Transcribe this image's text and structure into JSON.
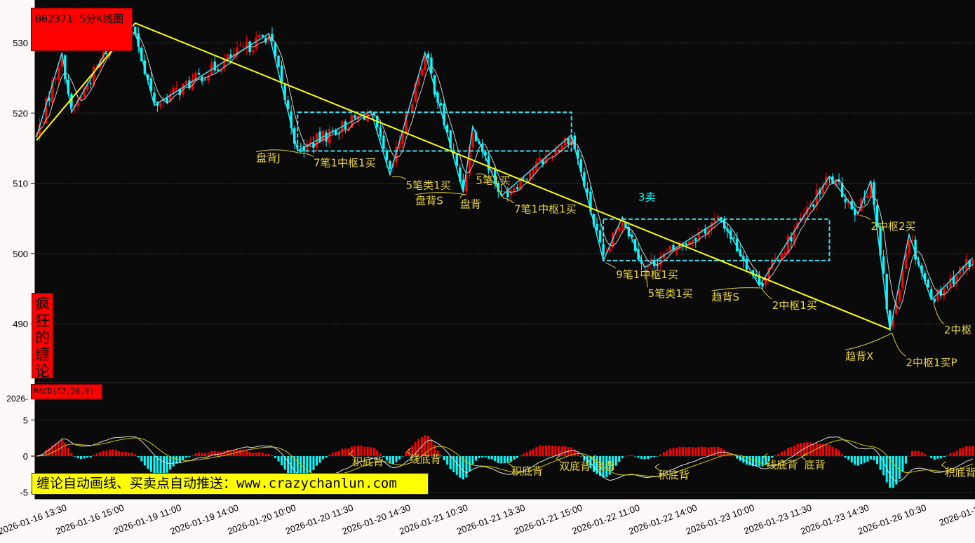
{
  "title": "002371 5分K线图",
  "side_label": "疯狂的缠论",
  "macd_label": "MACD(12,26,9)",
  "banner": "缠论自动画线、买卖点自动推送：www.crazychanlun.com",
  "colors": {
    "background": "#0a0a0a",
    "up": "#ff0000",
    "down": "#00ffff",
    "bi": "#40e0f0",
    "segment": "#ffff00",
    "annotation": "#e6d23c",
    "ma": "#cccccc",
    "dea": "#d4c400",
    "dif": "#dddddd"
  },
  "chart_data": [
    {
      "type": "candlestick",
      "title": "002371 5分K线图",
      "ylim": [
        485,
        536
      ],
      "yticks": [
        "530",
        "520",
        "510",
        "500",
        "490"
      ],
      "ytick_values": [
        530,
        520,
        510,
        500,
        490
      ],
      "grid": true,
      "xticks": [
        "2026-01-16 13:30",
        "2026-01-16 15:00",
        "2026-01-19 11:00",
        "2026-01-19 14:00",
        "2026-01-20 10:00",
        "2026-01-20 11:30",
        "2026-01-20 14:30",
        "2026-01-21 10:30",
        "2026-01-21 13:30",
        "2026-01-21 15:00",
        "2026-01-22 11:00",
        "2026-01-22 14:00",
        "2026-01-23 10:00",
        "2026-01-23 11:30",
        "2026-01-23 14:30",
        "2026-01-26 10:30",
        "2026-01-26"
      ],
      "bars_per_tick": 18,
      "bi_pivots": [
        [
          0,
          516.6
        ],
        [
          8,
          528.6
        ],
        [
          11,
          520.1
        ],
        [
          24,
          530.5
        ],
        [
          31,
          531.5
        ],
        [
          37,
          521.1
        ],
        [
          73,
          531.3
        ],
        [
          82,
          514.6
        ],
        [
          105,
          520.3
        ],
        [
          111,
          511.2
        ],
        [
          122,
          528.6
        ],
        [
          134,
          508.7
        ],
        [
          137,
          518.1
        ],
        [
          146,
          508.2
        ],
        [
          168,
          516.9
        ],
        [
          178,
          499.0
        ],
        [
          184,
          505.2
        ],
        [
          191,
          498.0
        ],
        [
          215,
          504.9
        ],
        [
          227,
          495.4
        ],
        [
          249,
          511.0
        ],
        [
          258,
          505.7
        ],
        [
          262,
          510.4
        ],
        [
          268,
          489.0
        ],
        [
          274,
          502.7
        ],
        [
          281,
          493.4
        ],
        [
          294,
          499.4
        ]
      ],
      "segments": [
        [
          [
            0,
            516.1
          ],
          [
            31,
            532.8
          ]
        ],
        [
          [
            31,
            532.8
          ],
          [
            268,
            489.2
          ]
        ]
      ],
      "zhongshu": [
        {
          "from": 82,
          "to": 168,
          "low": 514.6,
          "high": 520.1
        },
        {
          "from": 178,
          "to": 249,
          "low": 499.0,
          "high": 504.9
        }
      ],
      "annotations": [
        {
          "text": "盘背J",
          "bar": 69,
          "price": 513.1,
          "target": [
            82,
            514.6
          ]
        },
        {
          "text": "7笔1中枢1买",
          "bar": 87,
          "price": 512.4,
          "target": [
            82,
            514.6
          ]
        },
        {
          "text": "5笔类1买",
          "bar": 116,
          "price": 509.2,
          "target": [
            111,
            511.2
          ]
        },
        {
          "text": "盘背S",
          "bar": 119,
          "price": 507.0,
          "target": [
            134,
            508.7
          ]
        },
        {
          "text": "盘背",
          "bar": 133,
          "price": 506.5,
          "target": [
            134,
            508.7
          ]
        },
        {
          "text": "5笔1买",
          "bar": 138,
          "price": 506.5,
          "target": [
            146,
            508.2
          ]
        },
        {
          "text": "7笔1中枢1买",
          "bar": 150,
          "price": 505.8,
          "target": [
            146,
            508.2
          ]
        },
        {
          "text": "3卖",
          "bar": 189,
          "price": 507.5,
          "color": "cyan",
          "target": [
            184,
            505.2
          ]
        },
        {
          "text": "9笔1中枢1买",
          "bar": 182,
          "price": 496.5,
          "target": [
            178,
            499.0
          ]
        },
        {
          "text": "5笔类1买",
          "bar": 192,
          "price": 495.5,
          "target": [
            191,
            498.0
          ]
        },
        {
          "text": "趋背S",
          "bar": 212,
          "price": 493.3,
          "target": [
            227,
            495.4
          ]
        },
        {
          "text": "2中枢1买",
          "bar": 231,
          "price": 492.1,
          "target": [
            227,
            495.4
          ]
        },
        {
          "text": "2中枢2买",
          "bar": 262,
          "price": 503.4,
          "target": [
            258,
            505.7
          ]
        },
        {
          "text": "趋背X",
          "bar": 254,
          "price": 484.9,
          "target": [
            268,
            489.0
          ]
        },
        {
          "text": "2中枢1买P",
          "bar": 273,
          "price": 484.0,
          "target": [
            268,
            489.0
          ]
        },
        {
          "text": "2中枢",
          "bar": 285,
          "price": 488.6,
          "target": [
            281,
            493.4
          ]
        }
      ]
    },
    {
      "type": "bar+line",
      "title": "MACD(12,26,9)",
      "ylim": [
        -6,
        8
      ],
      "yticks": [
        "5",
        "0",
        "-5"
      ],
      "ytick_values": [
        5,
        0,
        -5
      ],
      "extra_label": "2026-",
      "annotations": [
        {
          "text": "积底背",
          "bar": 100,
          "value": -2.5
        },
        {
          "text": "线底背",
          "bar": 118,
          "value": -2.2
        },
        {
          "text": "积底背",
          "bar": 150,
          "value": -2.2
        },
        {
          "text": "双底背",
          "bar": 165,
          "value": -1.5
        },
        {
          "text": "底背",
          "bar": 176,
          "value": -1.5
        },
        {
          "text": "积底背",
          "bar": 196,
          "value": -2.7
        },
        {
          "text": "线底背",
          "bar": 230,
          "value": -1.3
        },
        {
          "text": "底背",
          "bar": 242,
          "value": -1.3
        },
        {
          "text": "积底背",
          "bar": 286,
          "value": -2.4
        }
      ]
    }
  ]
}
